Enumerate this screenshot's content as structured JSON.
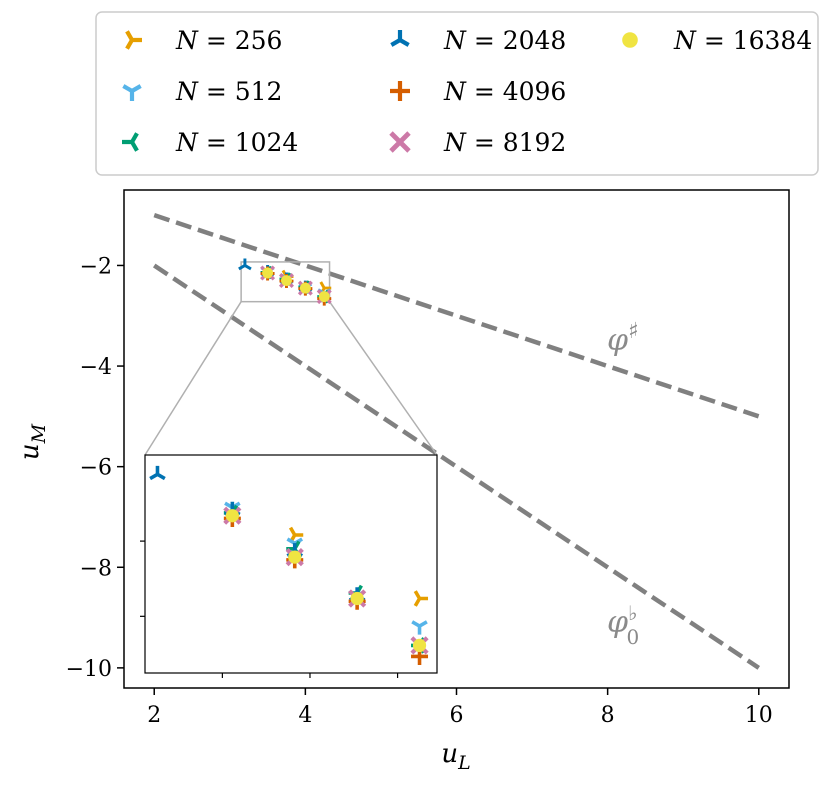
{
  "chart_data": {
    "type": "scatter",
    "title": "",
    "xlabel": "u_L",
    "ylabel": "u_M",
    "xlim": [
      1.6,
      10.4
    ],
    "ylim": [
      -10.4,
      -0.5
    ],
    "xticks": [
      2,
      4,
      6,
      8,
      10
    ],
    "yticks": [
      -2,
      -4,
      -6,
      -8,
      -10
    ],
    "legend": {
      "position": "above plot",
      "columns": 3
    },
    "series": [
      {
        "name": "N = 256",
        "color": "#E69F00",
        "marker": "tri-right",
        "points": [
          [
            3.75,
            -2.22
          ],
          [
            4.25,
            -2.45
          ]
        ]
      },
      {
        "name": "N = 512",
        "color": "#56B4E9",
        "marker": "tri-up",
        "points": [
          [
            3.5,
            -2.12
          ],
          [
            3.75,
            -2.25
          ],
          [
            4.0,
            -2.44
          ],
          [
            4.25,
            -2.55
          ]
        ]
      },
      {
        "name": "N = 1024",
        "color": "#009E73",
        "marker": "tri-left",
        "points": [
          [
            3.5,
            -2.14
          ],
          [
            3.75,
            -2.27
          ],
          [
            4.0,
            -2.43
          ],
          [
            4.25,
            -2.62
          ]
        ]
      },
      {
        "name": "N = 2048",
        "color": "#0072B2",
        "marker": "tri-down",
        "points": [
          [
            3.2,
            -2.0
          ],
          [
            3.5,
            -2.13
          ],
          [
            3.75,
            -2.28
          ],
          [
            4.0,
            -2.44
          ]
        ]
      },
      {
        "name": "N = 4096",
        "color": "#D55E00",
        "marker": "plus",
        "points": [
          [
            3.5,
            -2.16
          ],
          [
            3.75,
            -2.31
          ],
          [
            4.0,
            -2.46
          ],
          [
            4.25,
            -2.66
          ]
        ]
      },
      {
        "name": "N = 8192",
        "color": "#CC79A7",
        "marker": "x",
        "points": [
          [
            3.5,
            -2.15
          ],
          [
            3.75,
            -2.3
          ],
          [
            4.0,
            -2.45
          ],
          [
            4.25,
            -2.62
          ]
        ]
      },
      {
        "name": "N = 16384",
        "color": "#F0E442",
        "marker": "circle",
        "points": [
          [
            3.5,
            -2.15
          ],
          [
            3.75,
            -2.3
          ],
          [
            4.0,
            -2.45
          ],
          [
            4.25,
            -2.62
          ]
        ]
      }
    ],
    "reference_lines": [
      {
        "name": "phi-sharp",
        "label": "φ♯",
        "color": "#808080",
        "style": "dashed",
        "points": [
          [
            2,
            -1
          ],
          [
            10,
            -5
          ]
        ]
      },
      {
        "name": "phi-flat",
        "label": "φ♭0",
        "color": "#808080",
        "style": "dashed",
        "points": [
          [
            2,
            -2
          ],
          [
            10,
            -10
          ]
        ]
      }
    ],
    "inset": {
      "xlim": [
        3.15,
        4.32
      ],
      "ylim": [
        -2.72,
        -1.93
      ],
      "ticks": "none",
      "zoom_box_color": "#b0b0b0"
    }
  }
}
